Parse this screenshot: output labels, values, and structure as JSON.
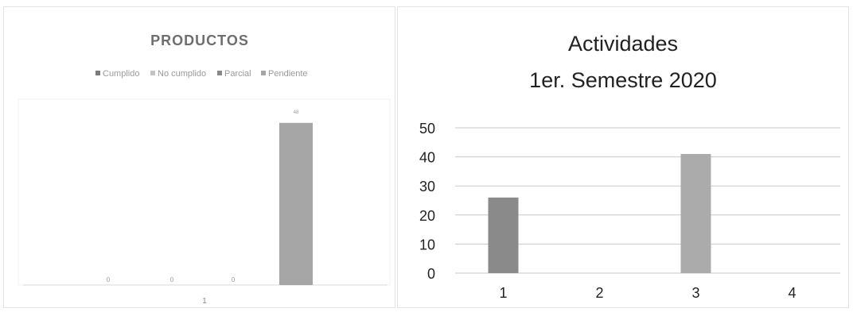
{
  "chart_data": [
    {
      "type": "bar",
      "title": "PRODUCTOS",
      "legend_position": "top",
      "categories": [
        "1"
      ],
      "series": [
        {
          "name": "Cumplido",
          "values": [
            0
          ],
          "color": "#7a7a7a"
        },
        {
          "name": "No cumplido",
          "values": [
            0
          ],
          "color": "#c4c4c4"
        },
        {
          "name": "Parcial",
          "values": [
            0
          ],
          "color": "#888888"
        },
        {
          "name": "Pendiente",
          "values": [
            48
          ],
          "color": "#a6a6a6"
        }
      ],
      "data_labels": [
        "0",
        "0",
        "0",
        "48"
      ],
      "ylim": [
        0,
        55
      ],
      "grid": false
    },
    {
      "type": "bar",
      "title_lines": [
        "Actividades",
        "1er. Semestre 2020"
      ],
      "categories": [
        "1",
        "2",
        "3",
        "4"
      ],
      "values": [
        26,
        0,
        41,
        0
      ],
      "colors": [
        "#8a8a8a",
        "#a8a8a8",
        "#ababab",
        "#9a9a9a"
      ],
      "ylim": [
        0,
        50
      ],
      "yticks": [
        "0",
        "10",
        "20",
        "30",
        "40",
        "50"
      ],
      "grid": true
    }
  ]
}
